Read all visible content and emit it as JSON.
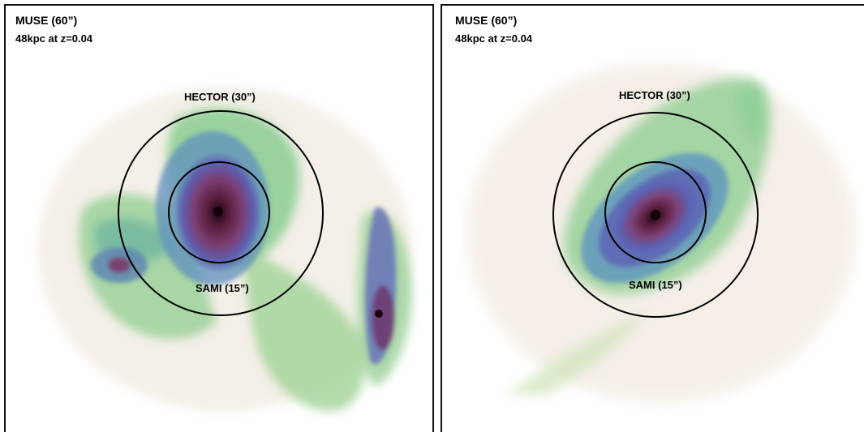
{
  "panels": [
    {
      "muse_label": "MUSE (60”)",
      "scale_label": "48kpc at z=0.04",
      "hector_label": "HECTOR (30”)",
      "sami_label": "SAMI (15”)"
    },
    {
      "muse_label": "MUSE (60”)",
      "scale_label": "48kpc at z=0.04",
      "hector_label": "HECTOR (30”)",
      "sami_label": "SAMI (15”)"
    }
  ],
  "colors": {
    "outer_halo": "#d8c7b0",
    "green": "#7fc58d",
    "teal": "#4f9aa8",
    "blue": "#5a63b3",
    "purple": "#6b3c7c",
    "core": "#3a0d2c",
    "aperture": "#000000"
  }
}
